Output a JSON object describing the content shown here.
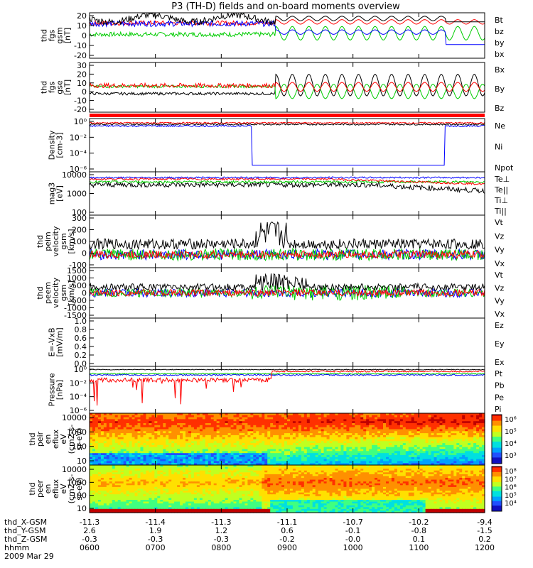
{
  "title": "P3 (TH-D) fields and on-board moments overview",
  "chart_data": {
    "type": "line",
    "title": "P3 (TH-D) fields and on-board moments overview",
    "x_ticks_time": [
      "0600",
      "0700",
      "0800",
      "0900",
      "1000",
      "1100",
      "1200"
    ],
    "ephemeris": [
      {
        "label": "thd_X-GSM",
        "values": [
          "-11.3",
          "-11.4",
          "-11.3",
          "-11.1",
          "-10.7",
          "-10.2",
          "-9.4"
        ]
      },
      {
        "label": "thd_Y-GSM",
        "values": [
          "2.6",
          "1.9",
          "1.2",
          "0.6",
          "-0.1",
          "-0.8",
          "-1.5"
        ]
      },
      {
        "label": "thd_Z-GSM",
        "values": [
          "-0.3",
          "-0.3",
          "-0.3",
          "-0.2",
          "-0.0",
          "0.1",
          "0.2"
        ]
      },
      {
        "label": "hhmm",
        "values": []
      }
    ],
    "date": "2009 Mar 29",
    "panels": [
      {
        "id": "fgs_gsm",
        "ylabel": [
          "thd",
          "fgs",
          "gsm",
          "[nT]"
        ],
        "ticks": [
          "20",
          "10",
          "0",
          "-10",
          "-20"
        ],
        "ylim": [
          -20,
          20
        ],
        "legend": [
          {
            "name": "Bt",
            "color": "#000000"
          },
          {
            "name": "bz",
            "color": "#ff0000"
          },
          {
            "name": "by",
            "color": "#00cc00"
          },
          {
            "name": "bx",
            "color": "#0000ff"
          }
        ]
      },
      {
        "id": "fgs_gse",
        "ylabel": [
          "thd",
          "fgs",
          "gse",
          "[nT]"
        ],
        "ticks": [
          "30",
          "20",
          "10",
          "0",
          "-10",
          "-20"
        ],
        "ylim": [
          -25,
          30
        ],
        "legend": [
          {
            "name": "Bx",
            "color": "#000000"
          },
          {
            "name": "By",
            "color": "#00cc00"
          },
          {
            "name": "Bz",
            "color": "#ff0000"
          }
        ]
      },
      {
        "id": "density",
        "ylabel": [
          "Density",
          "[cm-3]"
        ],
        "ticks": [
          "10⁰",
          "10⁻²",
          "10⁻⁴",
          "10⁻⁶"
        ],
        "ylim": [
          -6,
          0.5
        ],
        "log": true,
        "legend": [
          {
            "name": "Ne",
            "color": "#ff0000"
          },
          {
            "name": "Ni",
            "color": "#000000"
          },
          {
            "name": "Npot",
            "color": "#0000ff"
          }
        ]
      },
      {
        "id": "temperature",
        "ylabel": [
          "mag3",
          "[eV]"
        ],
        "ticks": [
          "10000",
          "1000",
          "100"
        ],
        "ylim": [
          2,
          4.1
        ],
        "log": true,
        "legend": [
          {
            "name": "Te⊥",
            "color": "#ff0000"
          },
          {
            "name": "Te||",
            "color": "#000000"
          },
          {
            "name": "Ti⊥",
            "color": "#0000ff"
          },
          {
            "name": "Ti||",
            "color": "#00cc00"
          }
        ]
      },
      {
        "id": "peim_velocity",
        "ylabel": [
          "thd",
          "peim",
          "velocity",
          "gsm",
          "[km/s]"
        ],
        "ticks": [
          "300",
          "200",
          "100",
          "0",
          "-100"
        ],
        "ylim": [
          -100,
          300
        ],
        "legend": [
          {
            "name": "Vt",
            "color": "#000000"
          },
          {
            "name": "Vz",
            "color": "#ff0000"
          },
          {
            "name": "Vy",
            "color": "#00cc00"
          },
          {
            "name": "Vx",
            "color": "#0000ff"
          }
        ]
      },
      {
        "id": "peem_velocity",
        "ylabel": [
          "thd",
          "peem",
          "velocity",
          "gsm",
          "[km/s]"
        ],
        "ticks": [
          "1500",
          "1000",
          "500",
          "0",
          "-500",
          "-1000",
          "-1500"
        ],
        "ylim": [
          -1500,
          1500
        ],
        "legend": [
          {
            "name": "Vt",
            "color": "#000000"
          },
          {
            "name": "Vz",
            "color": "#ff0000"
          },
          {
            "name": "Vy",
            "color": "#00cc00"
          },
          {
            "name": "Vx",
            "color": "#0000ff"
          }
        ]
      },
      {
        "id": "efield",
        "ylabel": [
          "E=-VxB",
          "[mV/m]"
        ],
        "ticks": [
          "1.0",
          "0.8",
          "0.6",
          "0.4",
          "0.2",
          "0.0"
        ],
        "ylim": [
          0,
          1
        ],
        "legend": [
          {
            "name": "Ez",
            "color": "#ff0000"
          },
          {
            "name": "Ey",
            "color": "#00cc00"
          },
          {
            "name": "Ex",
            "color": "#0000ff"
          }
        ]
      },
      {
        "id": "pressure",
        "ylabel": [
          "Pressure",
          "[nPa]"
        ],
        "ticks": [
          "10⁰",
          "10⁻²",
          "10⁻⁴",
          "10⁻⁶"
        ],
        "ylim": [
          -6.5,
          0
        ],
        "log": true,
        "legend": [
          {
            "name": "Pt",
            "color": "#000000"
          },
          {
            "name": "Pb",
            "color": "#ff0000"
          },
          {
            "name": "Pe",
            "color": "#00cc00"
          },
          {
            "name": "Pi",
            "color": "#0000ff"
          }
        ]
      },
      {
        "id": "peir_spec",
        "ylabel": [
          "thd",
          "peir",
          "en",
          "eflux",
          "eV",
          "(cm2-s-",
          "sr-eV)"
        ],
        "ticks": [
          "10000",
          "1000",
          "100",
          "10"
        ],
        "colorbar": [
          "10⁶",
          "10⁵",
          "10⁴",
          "10³"
        ]
      },
      {
        "id": "peer_spec",
        "ylabel": [
          "thd",
          "peer",
          "en",
          "eflux",
          "eV",
          "(cm2-s-",
          "sr-eV)"
        ],
        "ticks": [
          "10000",
          "1000",
          "100",
          "10"
        ],
        "colorbar": [
          "10⁸",
          "10⁷",
          "10⁶",
          "10⁵",
          "10⁴"
        ]
      }
    ]
  }
}
